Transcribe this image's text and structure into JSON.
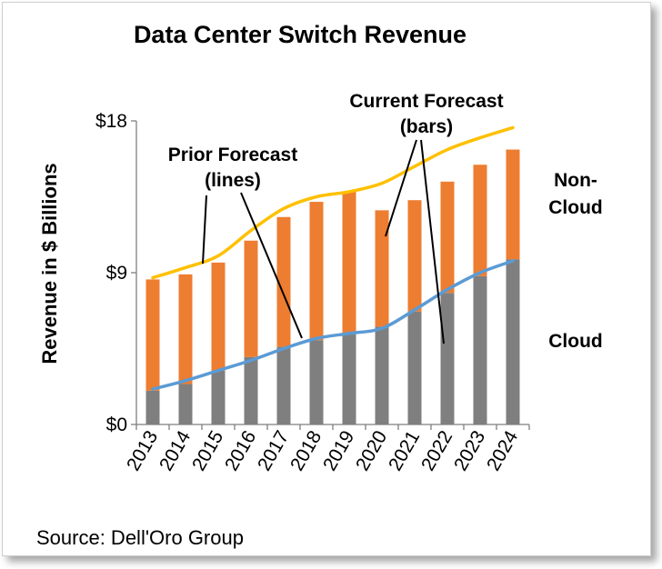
{
  "chart_data": {
    "type": "bar",
    "title": "Data Center Switch Revenue",
    "ylabel": "Revenue in $ Billions",
    "xlabel": "",
    "ylim": [
      0,
      18
    ],
    "y_ticks": [
      "$0",
      "$9",
      "$18"
    ],
    "categories": [
      "2013",
      "2014",
      "2015",
      "2016",
      "2017",
      "2018",
      "2019",
      "2020",
      "2021",
      "2022",
      "2023",
      "2024"
    ],
    "stacked": true,
    "series": [
      {
        "name": "Cloud",
        "kind": "bar",
        "color": "#7f7f7f",
        "values": [
          2.0,
          2.4,
          3.2,
          4.0,
          4.6,
          5.0,
          5.4,
          5.8,
          6.7,
          7.8,
          8.8,
          9.8
        ]
      },
      {
        "name": "Non-Cloud",
        "kind": "bar",
        "color": "#ed7d31",
        "values": [
          6.6,
          6.5,
          6.4,
          6.9,
          7.7,
          8.2,
          8.4,
          6.9,
          6.6,
          6.6,
          6.6,
          6.5
        ]
      },
      {
        "kind": "line",
        "color": "#ffc000",
        "values": [
          8.7,
          9.3,
          10.0,
          11.5,
          12.8,
          13.5,
          13.8,
          14.3,
          15.3,
          16.3,
          17.0,
          17.6
        ]
      },
      {
        "kind": "line",
        "color": "#5b9bd5",
        "values": [
          2.1,
          2.6,
          3.2,
          3.8,
          4.5,
          5.1,
          5.4,
          5.7,
          6.8,
          8.0,
          9.0,
          9.7
        ]
      }
    ],
    "annotations": {
      "prior": [
        "Prior Forecast",
        "(lines)"
      ],
      "current": [
        "Current Forecast",
        "(bars)"
      ],
      "noncloud": [
        "Non-",
        "Cloud"
      ],
      "cloud": "Cloud"
    },
    "source": "Source: Dell'Oro Group",
    "grid": false,
    "legend": "none"
  }
}
